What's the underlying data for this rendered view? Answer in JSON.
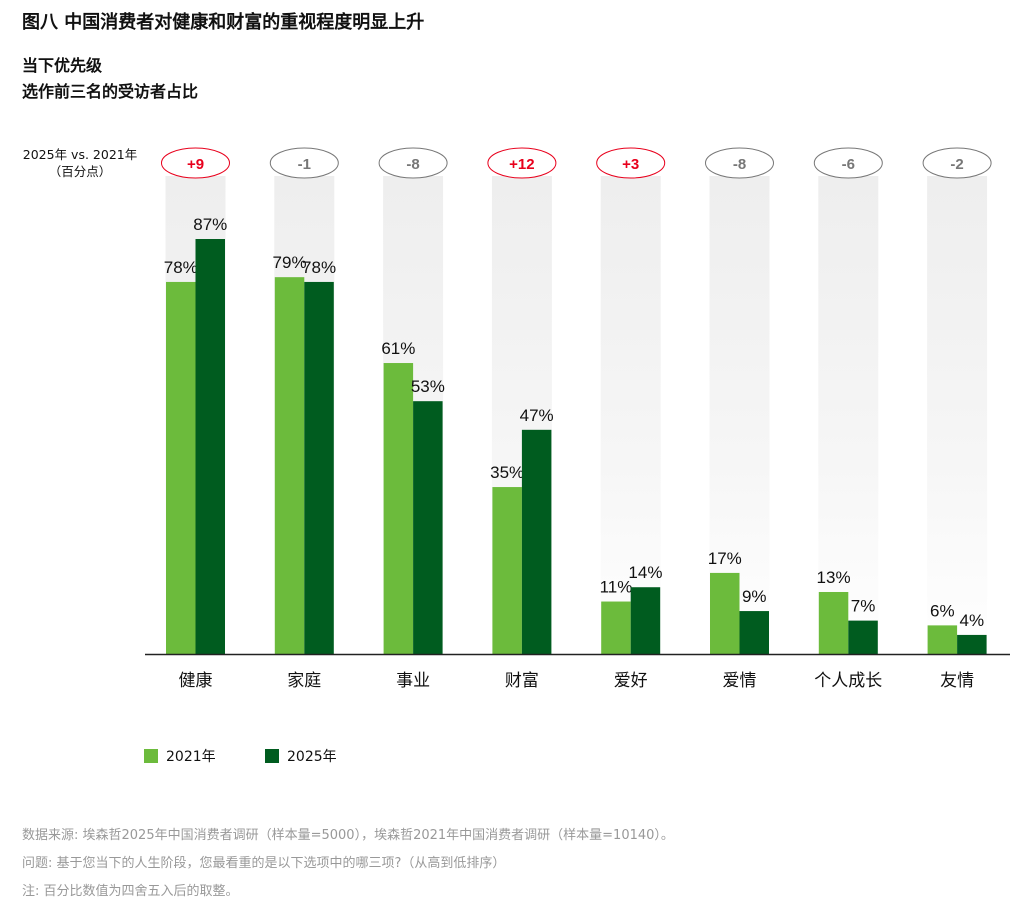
{
  "title": "图八  中国消费者对健康和财富的重视程度明显上升",
  "subtitle1": "当下优先级",
  "subtitle2": "选作前三名的受访者占比",
  "delta_caption_line1": "2025年 vs. 2021年",
  "delta_caption_line2": "（百分点）",
  "colors": {
    "y2021": "#6cbb3c",
    "y2025": "#005c1f",
    "positive": "#e8001c",
    "neutral": "#777777"
  },
  "chart_data": {
    "type": "bar",
    "categories": [
      "健康",
      "家庭",
      "事业",
      "财富",
      "爱好",
      "爱情",
      "个人成长",
      "友情"
    ],
    "series": [
      {
        "name": "2021年",
        "values": [
          78,
          79,
          61,
          35,
          11,
          17,
          13,
          6
        ]
      },
      {
        "name": "2025年",
        "values": [
          87,
          78,
          53,
          47,
          14,
          9,
          7,
          4
        ]
      }
    ],
    "deltas": [
      "+9",
      "-1",
      "-8",
      "+12",
      "+3",
      "-8",
      "-6",
      "-2"
    ],
    "ylim": [
      0,
      100
    ],
    "legend": "bottom-left",
    "grid": false
  },
  "footnotes": [
    "数据来源: 埃森哲2025年中国消费者调研（样本量=5000），埃森哲2021年中国消费者调研（样本量=10140）。",
    "问题: 基于您当下的人生阶段，您最看重的是以下选项中的哪三项?（从高到低排序）",
    "注: 百分比数值为四舍五入后的取整。"
  ]
}
